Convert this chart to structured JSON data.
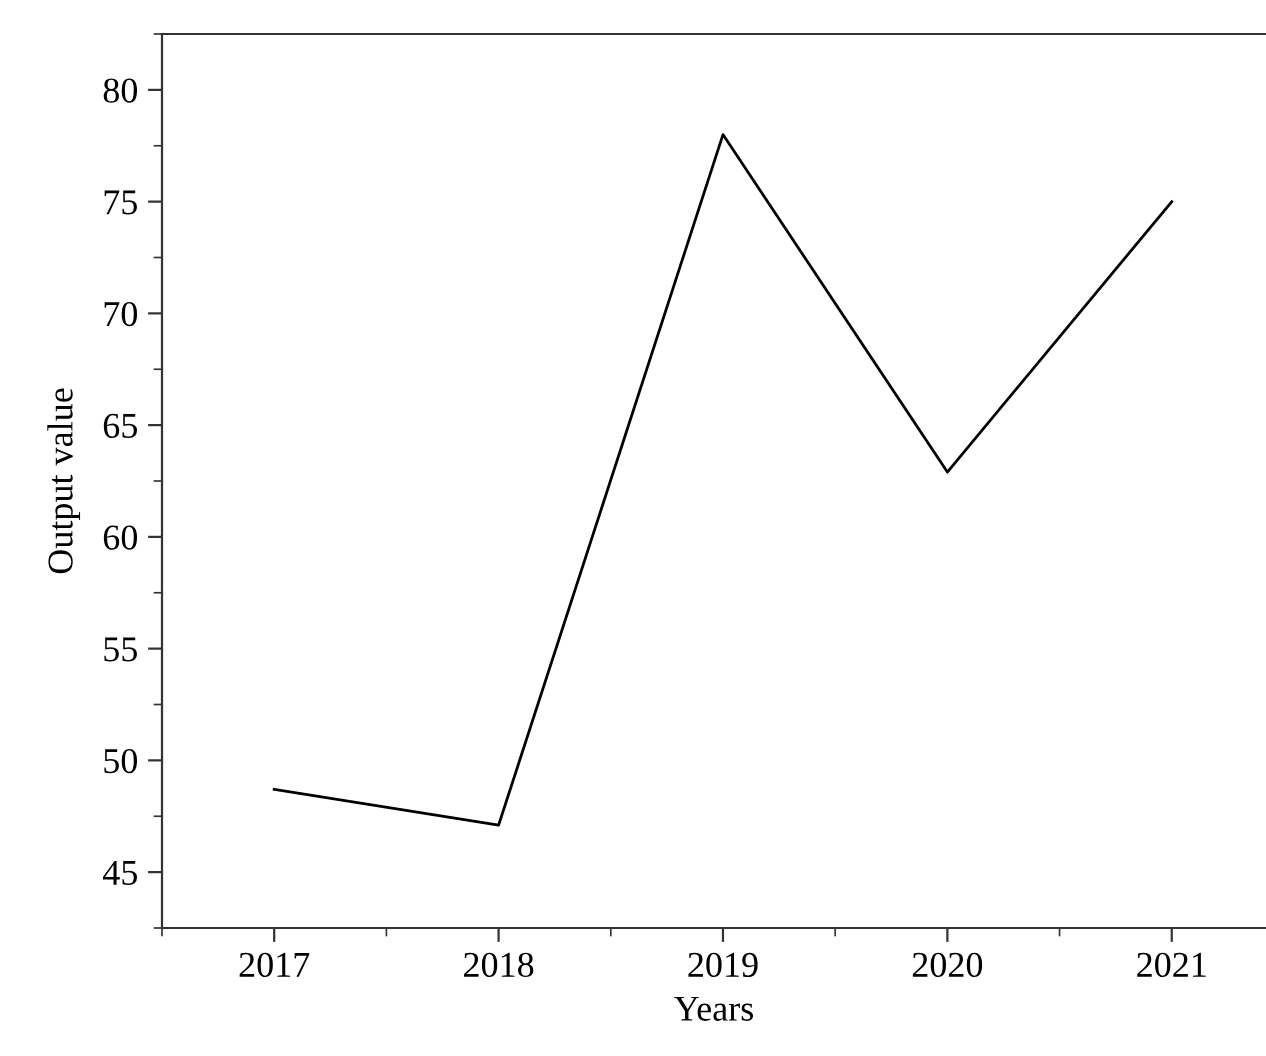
{
  "chart_data": {
    "type": "line",
    "xlabel": "Years",
    "ylabel": "Output value",
    "x": [
      2017,
      2018,
      2019,
      2020,
      2021
    ],
    "series": [
      {
        "color": "#000000",
        "values": [
          48.7,
          47.1,
          78.0,
          62.9,
          75.0
        ]
      }
    ],
    "xlim": [
      2016.5,
      2021.42
    ],
    "xticks": [
      2017,
      2018,
      2019,
      2020,
      2021
    ],
    "ylim": [
      42.5,
      82.5
    ],
    "yticks": [
      45,
      50,
      55,
      60,
      65,
      70,
      75,
      80
    ],
    "grid": false,
    "marker": "none",
    "line_style": "solid"
  }
}
